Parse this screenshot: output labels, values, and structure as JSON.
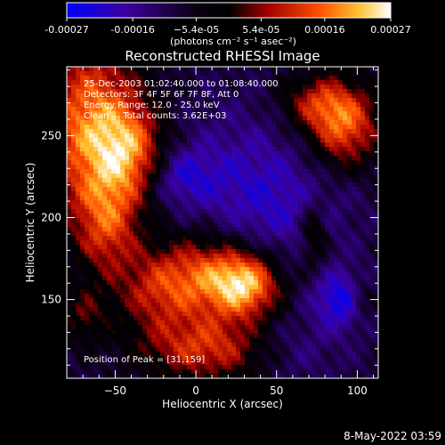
{
  "chart_data": {
    "type": "heatmap",
    "title": "Reconstructed RHESSI Image",
    "xlabel": "Heliocentric X (arcsec)",
    "ylabel": "Heliocentric Y (arcsec)",
    "xlim": [
      -80,
      113
    ],
    "ylim": [
      102,
      292
    ],
    "xticks": [
      -50,
      0,
      50,
      100
    ],
    "yticks": [
      150,
      200,
      250
    ],
    "colorbar": {
      "min": -0.00027,
      "max": 0.00027,
      "tick_values": [
        -0.00027,
        -0.00016,
        -5.4e-05,
        5.4e-05,
        0.00016,
        0.00027
      ],
      "tick_labels": [
        "-0.00027",
        "-0.00016",
        "−5.4e-05",
        "5.4e-05",
        "0.00016",
        "0.00027"
      ],
      "units": "(photons cm⁻² s⁻¹ asec⁻²)",
      "colors": [
        "#0000ff",
        "#1a0050",
        "#000000",
        "#b00000",
        "#ff6000",
        "#ffdc40",
        "#ffffff"
      ]
    },
    "annotations": [
      "25-Dec-2003 01:02:40.000 to 01:08:40.000",
      "Detectors: 3F 4F 5F 6F 7F 8F, Att 0",
      "Energy Range: 12.0 - 25.0 keV",
      "Clean     Total counts: 3.62E+03"
    ],
    "peak_label": "Position of Peak = [31,159]",
    "peak": [
      31,
      159
    ],
    "sources": [
      {
        "x": -65,
        "y": 255,
        "sx": 22,
        "sy": 38,
        "amp": 0.00026
      },
      {
        "x": -40,
        "y": 240,
        "sx": 15,
        "sy": 20,
        "amp": 0.00018
      },
      {
        "x": -55,
        "y": 195,
        "sx": 14,
        "sy": 22,
        "amp": 0.00016
      },
      {
        "x": 31,
        "y": 159,
        "sx": 15,
        "sy": 14,
        "amp": 0.00027
      },
      {
        "x": 5,
        "y": 165,
        "sx": 20,
        "sy": 18,
        "amp": 0.00019
      },
      {
        "x": -25,
        "y": 155,
        "sx": 18,
        "sy": 18,
        "amp": 0.00014
      },
      {
        "x": 10,
        "y": 120,
        "sx": 30,
        "sy": 14,
        "amp": 0.0002
      },
      {
        "x": 92,
        "y": 255,
        "sx": 16,
        "sy": 18,
        "amp": 0.00022
      },
      {
        "x": 75,
        "y": 270,
        "sx": 16,
        "sy": 12,
        "amp": 0.00014
      },
      {
        "x": 73,
        "y": 190,
        "sx": 6,
        "sy": 14,
        "amp": 0.00013
      },
      {
        "x": 103,
        "y": 150,
        "sx": 6,
        "sy": 8,
        "amp": 0.0001
      },
      {
        "x": -70,
        "y": 140,
        "sx": 10,
        "sy": 12,
        "amp": 0.0001
      }
    ],
    "negative_regions": [
      {
        "x": 90,
        "y": 150,
        "sx": 12,
        "sy": 12,
        "amp": -0.00016
      },
      {
        "x": 55,
        "y": 205,
        "sx": 30,
        "sy": 25,
        "amp": -8e-05
      },
      {
        "x": -10,
        "y": 225,
        "sx": 15,
        "sy": 12,
        "amp": -0.0001
      },
      {
        "x": 25,
        "y": 230,
        "sx": 30,
        "sy": 30,
        "amp": -7e-05
      },
      {
        "x": 55,
        "y": 120,
        "sx": 25,
        "sy": 15,
        "amp": -8e-05
      }
    ]
  },
  "footer": {
    "timestamp": "8-May-2022 03:59"
  }
}
